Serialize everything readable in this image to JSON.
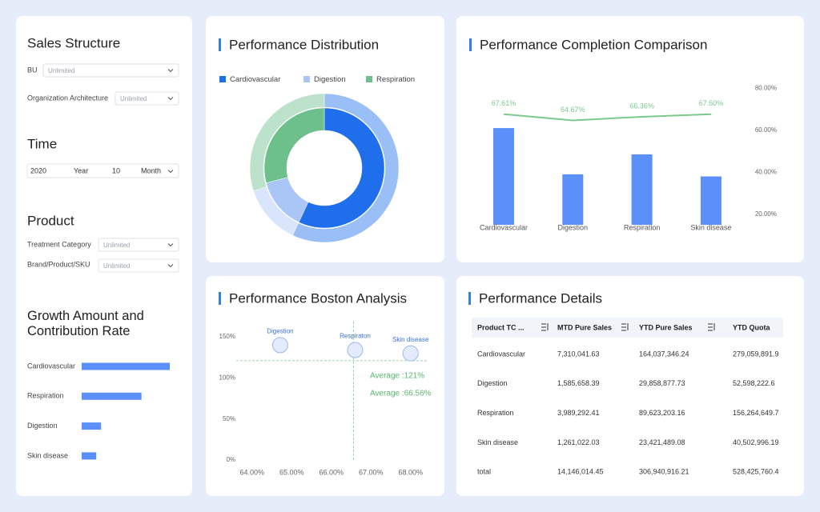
{
  "sidebar": {
    "sales_structure": {
      "title": "Sales Structure",
      "filters": [
        {
          "label": "BU",
          "value": "Unlimited"
        },
        {
          "label": "Organization Architecture",
          "value": "Unlimited"
        }
      ]
    },
    "time": {
      "title": "Time",
      "fields": [
        "2020",
        "Year",
        "10",
        "Month"
      ]
    },
    "product": {
      "title": "Product",
      "filters": [
        {
          "label": "Treatment Category",
          "value": "Unlimited"
        },
        {
          "label": "Brand/Product/SKU",
          "value": "Unlimited"
        }
      ]
    }
  },
  "chart_data": [
    {
      "type": "hbar",
      "title": "Growth Amount and Contribution Rate",
      "categories": [
        "Cardiovascular",
        "Respiration",
        "Digestion",
        "Skin disease"
      ],
      "values": [
        109,
        74,
        24,
        18
      ],
      "color": "#5b8ff9"
    },
    {
      "type": "donut",
      "title": "Performance Distribution",
      "categories": [
        "Cardiovascular",
        "Digestion",
        "Respiration"
      ],
      "colors": [
        "#1f6fec",
        "#a9c6f6",
        "#6dbf8c"
      ],
      "rings": [
        {
          "values": [
            57,
            14,
            29
          ]
        },
        {
          "values": [
            57,
            13,
            30
          ]
        }
      ]
    },
    {
      "type": "combo",
      "title": "Performance Completion Comparison",
      "categories": [
        "Cardiovascular",
        "Digestion",
        "Respiration",
        "Skin disease"
      ],
      "series": [
        {
          "type": "bar",
          "color": "#5b8ff9",
          "values": [
            61,
            39,
            48.5,
            38
          ]
        },
        {
          "type": "line",
          "color": "#7cc98f",
          "values": [
            67.61,
            64.67,
            66.36,
            67.6
          ],
          "value_labels": [
            "67.61%",
            "64.67%",
            "66.36%",
            "67.60%"
          ]
        }
      ],
      "ylim": [
        15,
        85
      ],
      "yticks": [
        {
          "value": 20,
          "label": "20.00%"
        },
        {
          "value": 40,
          "label": "40.00%"
        },
        {
          "value": 60,
          "label": "60.00%"
        },
        {
          "value": 80,
          "label": "80.00%"
        }
      ]
    },
    {
      "type": "bubble",
      "title": "Performance Boston Analysis",
      "labels": [
        "Digestion",
        "Respiraton",
        "Skin disease"
      ],
      "x": [
        64.71,
        66.6,
        68.0
      ],
      "values": [
        140,
        134,
        130
      ],
      "color": "#9db7ee",
      "xlim": [
        63.6,
        68.45
      ],
      "ylim": [
        0,
        155
      ],
      "xticks": [
        {
          "value": 64,
          "label": "64.00%"
        },
        {
          "value": 65,
          "label": "65.00%"
        },
        {
          "value": 66,
          "label": "66.00%"
        },
        {
          "value": 67,
          "label": "67.00%"
        },
        {
          "value": 68,
          "label": "68.00%"
        }
      ],
      "yticks": [
        {
          "value": 0,
          "label": "0%"
        },
        {
          "value": 50,
          "label": "50%"
        },
        {
          "value": 100,
          "label": "100%"
        },
        {
          "value": 150,
          "label": "150%"
        }
      ],
      "reference_lines": [
        {
          "axis": "y",
          "value": 121,
          "label": "Average :121%"
        },
        {
          "axis": "x",
          "value": 66.56,
          "label": "Average :66.56%"
        }
      ]
    }
  ],
  "table": {
    "title": "Performance Details",
    "columns": [
      "Product TC ...",
      "MTD Pure Sales",
      "YTD Pure Sales",
      "YTD Quota"
    ],
    "rows": [
      [
        "Cardiovascular",
        "7,310,041.63",
        "164,037,346.24",
        "279,059,891.9"
      ],
      [
        "Digestion",
        "1,585,658.39",
        "29,858,877.73",
        "52,598,222.6"
      ],
      [
        "Respiration",
        "3,989,292.41",
        "89,623,203.16",
        "156,264,649.7"
      ],
      [
        "Skin disease",
        "1,261,022.03",
        "23,421,489.08",
        "40,502,996.19"
      ],
      [
        "total",
        "14,146,014.45",
        "306,940,916.21",
        "528,425,760.4"
      ]
    ]
  }
}
